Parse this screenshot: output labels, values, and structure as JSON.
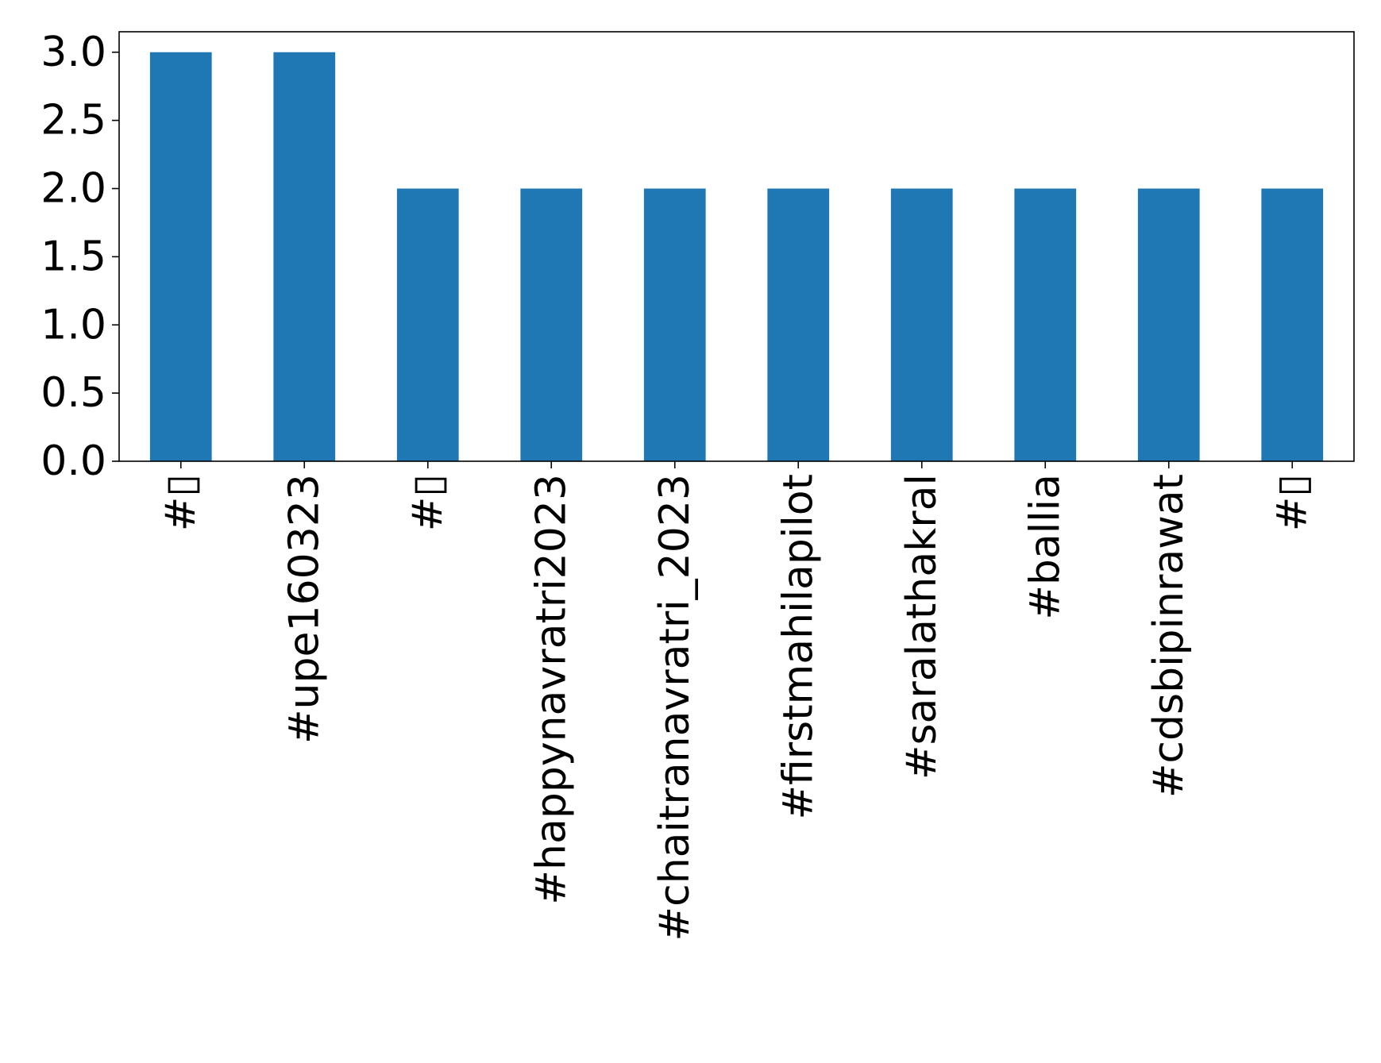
{
  "chart_data": {
    "type": "bar",
    "title": "",
    "xlabel": "",
    "ylabel": "",
    "categories": [
      "#▯",
      "#upe160323",
      "#▯",
      "#happynavratri2023",
      "#chaitranavratri_2023",
      "#firstmahilapilot",
      "#saralathakral",
      "#ballia",
      "#cdsbipinrawat",
      "#▯"
    ],
    "series": [
      {
        "values": [
          3,
          3,
          2,
          2,
          2,
          2,
          2,
          2,
          2,
          2
        ]
      }
    ],
    "ylim": [
      0,
      3.15
    ],
    "yticks": [
      "0.0",
      "0.5",
      "1.0",
      "1.5",
      "2.0",
      "2.5",
      "3.0"
    ],
    "grid": false,
    "legend": "none",
    "bar_color": "#1f77b4"
  }
}
